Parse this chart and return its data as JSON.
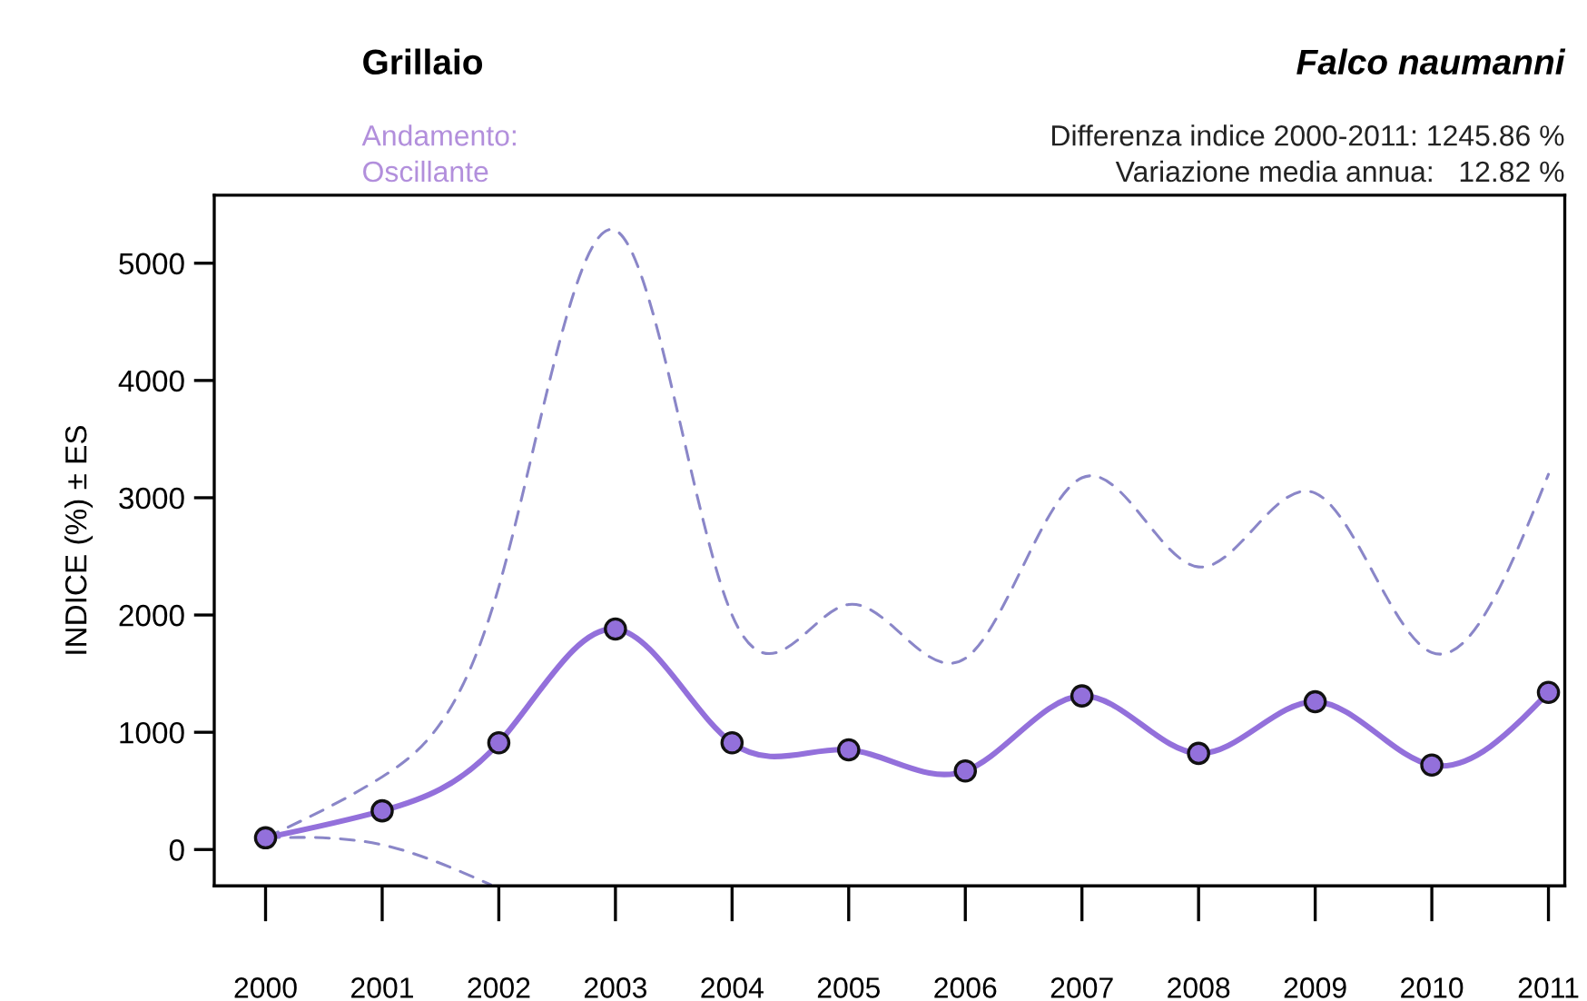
{
  "chart_data": {
    "type": "line",
    "title": "Grillaio",
    "subtitle": "Falco naumanni",
    "ylabel": "INDICE (%) ± ES",
    "annotations": [
      "Andamento:",
      "Oscillante",
      "Differenza indice 2000-2011: 1245.86 %",
      "Variazione media annua:   12.82 %"
    ],
    "x": [
      2000,
      2001,
      2002,
      2003,
      2004,
      2005,
      2006,
      2007,
      2008,
      2009,
      2010,
      2011
    ],
    "series": [
      {
        "color": "#9370db",
        "values": [
          100,
          330,
          910,
          1880,
          910,
          850,
          670,
          1310,
          820,
          1260,
          720,
          1340
        ]
      },
      {
        "color": "#8a86c8",
        "line_style": "dashed",
        "marker": "none",
        "values": [
          100,
          620,
          2240,
          5280,
          2000,
          2090,
          1630,
          3170,
          2410,
          3040,
          1680,
          3200
        ]
      },
      {
        "color": "#8a86c8",
        "line_style": "dashed",
        "marker": "none",
        "x": [
          2000,
          2001,
          2001.93
        ],
        "values": [
          100,
          40,
          -300
        ]
      }
    ],
    "xlim": [
      1999.56,
      2011.14
    ],
    "ylim": [
      -310,
      5580
    ],
    "xticks": [
      2000,
      2001,
      2002,
      2003,
      2004,
      2005,
      2006,
      2007,
      2008,
      2009,
      2010,
      2011
    ],
    "yticks": [
      0,
      1000,
      2000,
      3000,
      4000,
      5000
    ],
    "grid": false,
    "legend": false,
    "marker": "circle",
    "line_style": "solid"
  }
}
